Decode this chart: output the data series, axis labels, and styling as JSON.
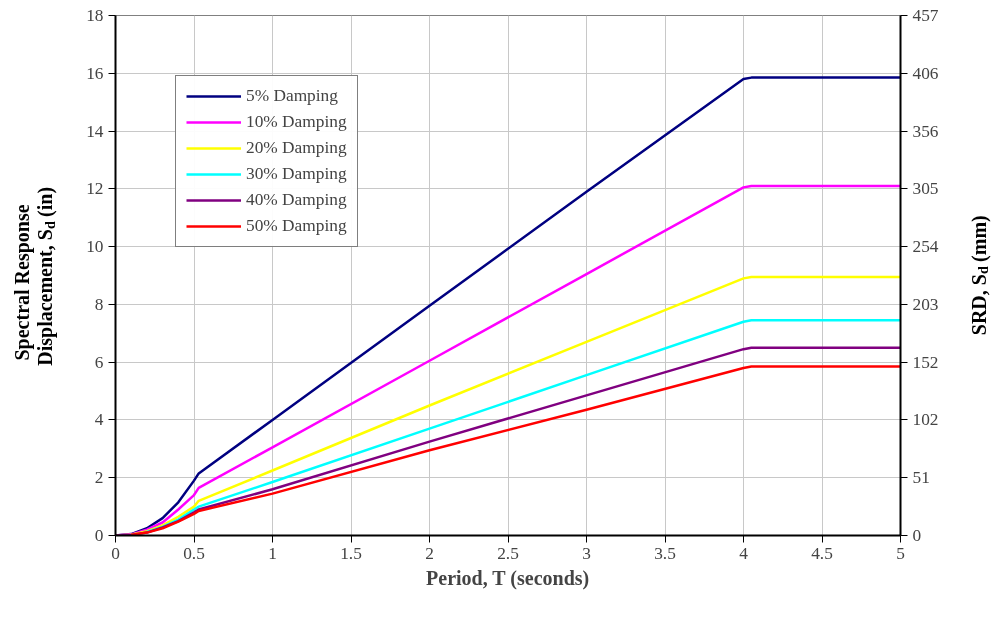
{
  "chart_data": {
    "type": "line",
    "xlabel": "Period, T (seconds)",
    "ylabel": "Spectral Response\nDisplacement, S$_{d}$ (in)",
    "y2label": "SRD, S$_{d}$ (mm)",
    "xlim": [
      0,
      5
    ],
    "xticks": [
      0,
      0.5,
      1,
      1.5,
      2,
      2.5,
      3,
      3.5,
      4,
      4.5,
      5
    ],
    "ylim": [
      0,
      18
    ],
    "yticks": [
      0,
      2,
      4,
      6,
      8,
      10,
      12,
      14,
      16,
      18
    ],
    "y2lim": [
      0,
      457.2
    ],
    "y2ticks": [
      0,
      {
        "value": 50.8,
        "label": "51"
      },
      {
        "value": 101.6,
        "label": "102"
      },
      {
        "value": 152.4,
        "label": "152"
      },
      {
        "value": 203.2,
        "label": "203"
      },
      254,
      {
        "value": 304.8,
        "label": "305"
      },
      {
        "value": 355.6,
        "label": "356"
      },
      {
        "value": 406.4,
        "label": "406"
      },
      {
        "value": 457.2,
        "label": "457"
      }
    ],
    "grid": true,
    "legend": "top left",
    "marker": "none",
    "line_style": "solid",
    "series": [
      {
        "name": "5% Damping",
        "color": "#000080",
        "x": [
          0,
          0.1,
          0.2,
          0.3,
          0.4,
          0.5,
          0.53,
          1,
          2,
          3,
          4,
          4.05,
          5
        ],
        "values": [
          0,
          0.05,
          0.25,
          0.6,
          1.15,
          1.9,
          2.15,
          4.0,
          7.95,
          11.9,
          15.8,
          15.85,
          15.85
        ]
      },
      {
        "name": "10% Damping",
        "color": "#ff00ff",
        "x": [
          0,
          0.1,
          0.2,
          0.3,
          0.4,
          0.5,
          0.53,
          1,
          2,
          3,
          4,
          4.05,
          5
        ],
        "values": [
          0,
          0.04,
          0.2,
          0.45,
          0.9,
          1.4,
          1.65,
          3.05,
          6.05,
          9.05,
          12.05,
          12.1,
          12.1
        ]
      },
      {
        "name": "20% Damping",
        "color": "#ffff00",
        "x": [
          0,
          0.1,
          0.2,
          0.3,
          0.4,
          0.5,
          0.53,
          1,
          2,
          3,
          4,
          4.05,
          5
        ],
        "values": [
          0,
          0.03,
          0.15,
          0.35,
          0.65,
          1.0,
          1.2,
          2.25,
          4.5,
          6.7,
          8.9,
          8.95,
          8.95
        ]
      },
      {
        "name": "30% Damping",
        "color": "#00ffff",
        "x": [
          0.2,
          0.3,
          0.4,
          0.5,
          0.53,
          1,
          2,
          3,
          4,
          4.05,
          5
        ],
        "values": [
          0.12,
          0.3,
          0.55,
          0.9,
          1.0,
          1.85,
          3.7,
          5.55,
          7.4,
          7.45,
          7.45
        ]
      },
      {
        "name": "40% Damping",
        "color": "#800080",
        "x": [
          0,
          0.1,
          0.2,
          0.3,
          0.4,
          0.5,
          0.53,
          1,
          2,
          3,
          4,
          4.05,
          5
        ],
        "values": [
          0,
          0.02,
          0.1,
          0.28,
          0.5,
          0.8,
          0.9,
          1.6,
          3.25,
          4.85,
          6.45,
          6.5,
          6.5
        ]
      },
      {
        "name": "50% Damping",
        "color": "#ff0000",
        "x": [
          0.1,
          0.2,
          0.3,
          0.4,
          0.5,
          0.53,
          1,
          2,
          3,
          4,
          4.05,
          5
        ],
        "values": [
          0.02,
          0.1,
          0.25,
          0.48,
          0.75,
          0.85,
          1.45,
          2.95,
          4.35,
          5.8,
          5.85,
          5.85
        ]
      }
    ]
  }
}
